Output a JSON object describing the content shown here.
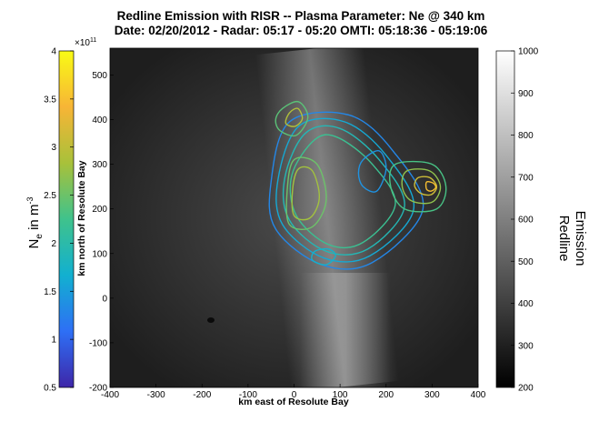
{
  "chart_data": {
    "type": "contour",
    "title_line1": "Redline Emission with RISR -- Plasma Parameter: Ne @ 340 km",
    "title_line2": "Date: 02/20/2012 - Radar: 05:17 - 05:20 OMTI: 05:18:36 - 05:19:06",
    "xlabel": "km east of Resolute Bay",
    "ylabel": "km north of Resolute Bay",
    "xlim": [
      -400,
      400
    ],
    "ylim": [
      -200,
      560
    ],
    "xticks": [
      -400,
      -300,
      -200,
      -100,
      0,
      100,
      200,
      300,
      400
    ],
    "yticks": [
      -200,
      -100,
      0,
      100,
      200,
      300,
      400,
      500
    ],
    "ne_colorbar": {
      "label_main": "N",
      "label_sub": "e",
      "label_rest": " in m",
      "label_sup": "-3",
      "multiplier_base": "×10",
      "multiplier_exp": "11",
      "range": [
        0.5,
        4
      ],
      "ticks": [
        "0.5",
        "1",
        "1.5",
        "2",
        "2.5",
        "3",
        "3.5",
        "4"
      ],
      "colors": [
        "#3e26a8",
        "#2e6ff5",
        "#12b0d0",
        "#3fc28c",
        "#a8c13a",
        "#f7b536",
        "#f9fb15"
      ]
    },
    "emission_colorbar": {
      "label_line1": "Redline",
      "label_line2": "Emission",
      "range": [
        200,
        1000
      ],
      "ticks": [
        "200",
        "300",
        "400",
        "500",
        "600",
        "700",
        "800",
        "900",
        "1000"
      ]
    },
    "contours": [
      {
        "ne": 1.3,
        "points": [
          [
            -10,
            395
          ],
          [
            120,
            410
          ],
          [
            215,
            330
          ],
          [
            280,
            200
          ],
          [
            170,
            80
          ],
          [
            60,
            75
          ],
          [
            -40,
            155
          ],
          [
            -50,
            260
          ]
        ]
      },
      {
        "ne": 1.6,
        "points": [
          [
            10,
            385
          ],
          [
            110,
            395
          ],
          [
            200,
            320
          ],
          [
            260,
            200
          ],
          [
            165,
            95
          ],
          [
            65,
            90
          ],
          [
            -25,
            165
          ],
          [
            -35,
            265
          ]
        ]
      },
      {
        "ne": 1.9,
        "points": [
          [
            25,
            370
          ],
          [
            100,
            380
          ],
          [
            185,
            310
          ],
          [
            240,
            205
          ],
          [
            160,
            110
          ],
          [
            70,
            105
          ],
          [
            -10,
            175
          ],
          [
            -20,
            270
          ]
        ]
      },
      {
        "ne": 2.2,
        "points": [
          [
            45,
            355
          ],
          [
            95,
            360
          ],
          [
            170,
            300
          ],
          [
            220,
            210
          ],
          [
            150,
            125
          ],
          [
            75,
            120
          ],
          [
            5,
            185
          ],
          [
            -5,
            275
          ]
        ]
      },
      {
        "ne": 2.5,
        "points": [
          [
            0,
            310
          ],
          [
            50,
            300
          ],
          [
            70,
            220
          ],
          [
            40,
            160
          ],
          [
            -10,
            165
          ],
          [
            -15,
            240
          ]
        ]
      },
      {
        "ne": 2.8,
        "points": [
          [
            10,
            290
          ],
          [
            40,
            285
          ],
          [
            55,
            225
          ],
          [
            35,
            180
          ],
          [
            0,
            185
          ],
          [
            -3,
            245
          ]
        ]
      },
      {
        "ne": 2.3,
        "points": [
          [
            220,
            300
          ],
          [
            300,
            300
          ],
          [
            330,
            250
          ],
          [
            310,
            200
          ],
          [
            240,
            200
          ],
          [
            210,
            250
          ]
        ]
      },
      {
        "ne": 2.7,
        "points": [
          [
            245,
            285
          ],
          [
            295,
            285
          ],
          [
            318,
            250
          ],
          [
            300,
            215
          ],
          [
            255,
            218
          ],
          [
            235,
            250
          ]
        ]
      },
      {
        "ne": 3.1,
        "points": [
          [
            270,
            270
          ],
          [
            295,
            270
          ],
          [
            310,
            250
          ],
          [
            298,
            232
          ],
          [
            275,
            235
          ],
          [
            262,
            252
          ]
        ]
      },
      {
        "ne": 3.5,
        "points": [
          [
            288,
            260
          ],
          [
            302,
            258
          ],
          [
            308,
            248
          ],
          [
            298,
            240
          ],
          [
            288,
            244
          ]
        ]
      },
      {
        "ne": 2.4,
        "points": [
          [
            -25,
            425
          ],
          [
            10,
            440
          ],
          [
            30,
            405
          ],
          [
            5,
            365
          ],
          [
            -30,
            375
          ],
          [
            -40,
            400
          ]
        ]
      },
      {
        "ne": 2.9,
        "points": [
          [
            -10,
            415
          ],
          [
            8,
            425
          ],
          [
            18,
            402
          ],
          [
            2,
            385
          ],
          [
            -18,
            392
          ]
        ]
      },
      {
        "ne": 1.4,
        "points": [
          [
            150,
            310
          ],
          [
            185,
            330
          ],
          [
            200,
            290
          ],
          [
            180,
            240
          ],
          [
            150,
            250
          ],
          [
            140,
            280
          ]
        ]
      },
      {
        "ne": 1.7,
        "points": [
          [
            40,
            85
          ],
          [
            70,
            75
          ],
          [
            90,
            95
          ],
          [
            75,
            110
          ],
          [
            45,
            105
          ]
        ]
      }
    ]
  }
}
